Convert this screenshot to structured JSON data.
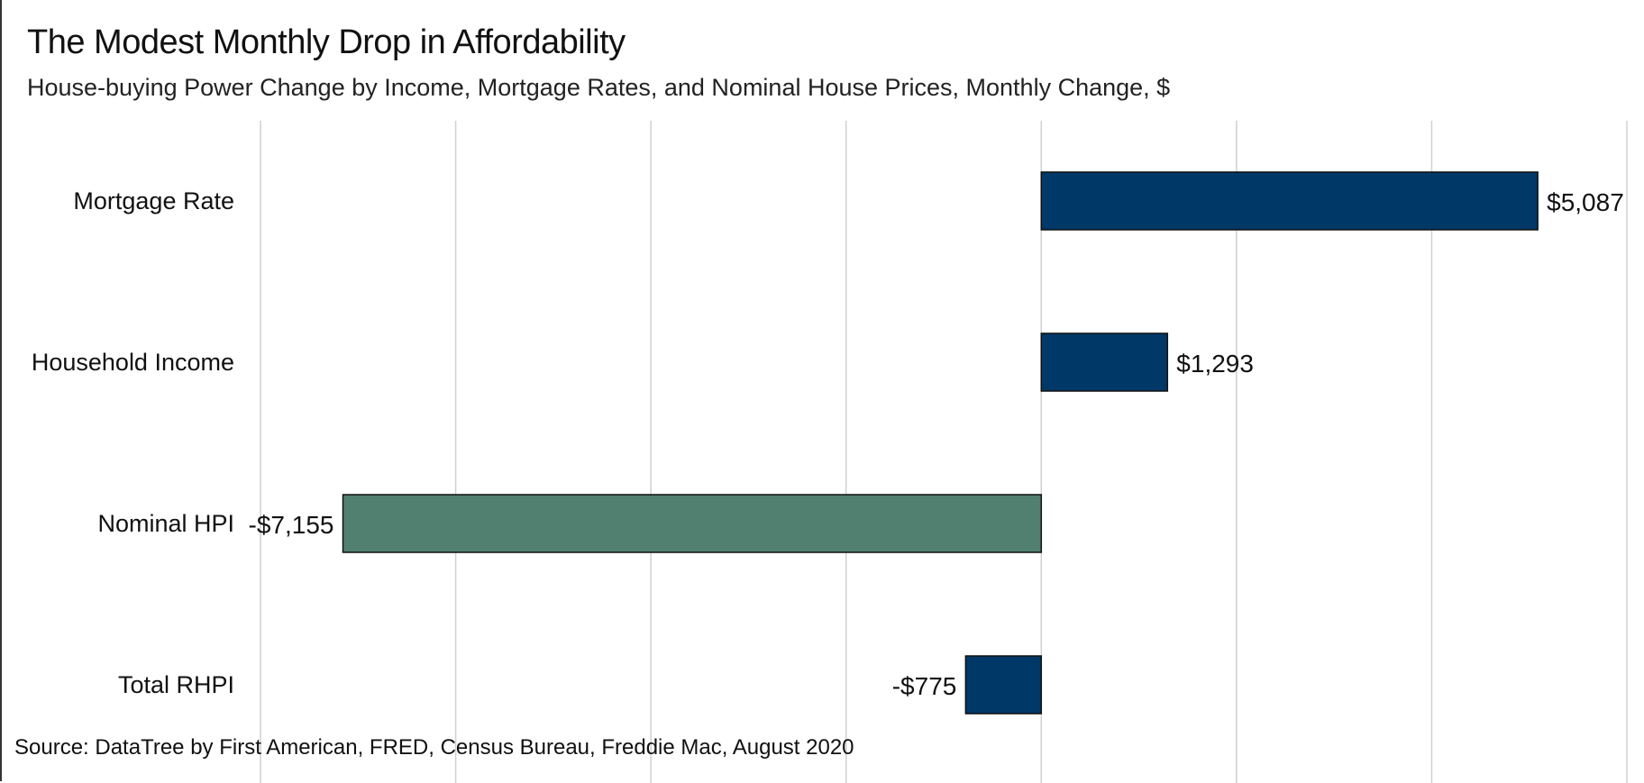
{
  "title": "The Modest Monthly Drop in Affordability",
  "subtitle": "House-buying Power Change by Income, Mortgage Rates, and Nominal House Prices, Monthly Change, $",
  "source": "Source: DataTree by First American, FRED, Census Bureau, Freddie Mac, August 2020",
  "colors": {
    "positive": "#003868",
    "negative_hpi": "#518070",
    "negative_total": "#003868",
    "gridline": "#d0d0d0",
    "bar_outline": "#111111"
  },
  "chart_data": {
    "type": "bar",
    "orientation": "horizontal",
    "title": "The Modest Monthly Drop in Affordability",
    "subtitle": "House-buying Power Change by Income, Mortgage Rates, and Nominal House Prices, Monthly Change, $",
    "categories": [
      "Mortgage Rate",
      "Household Income",
      "Nominal HPI",
      "Total RHPI"
    ],
    "values": [
      5087,
      1293,
      -7155,
      -775
    ],
    "data_labels": [
      "$5,087",
      "$1,293",
      "-$7,155",
      "-$775"
    ],
    "bar_colors": [
      "#003868",
      "#003868",
      "#518070",
      "#003868"
    ],
    "xlim": [
      -8000,
      6000
    ],
    "x_gridlines": [
      -8000,
      -6000,
      -4000,
      -2000,
      0,
      2000,
      4000,
      6000
    ],
    "xlabel": "",
    "ylabel": "",
    "grid": true,
    "legend": "none"
  }
}
